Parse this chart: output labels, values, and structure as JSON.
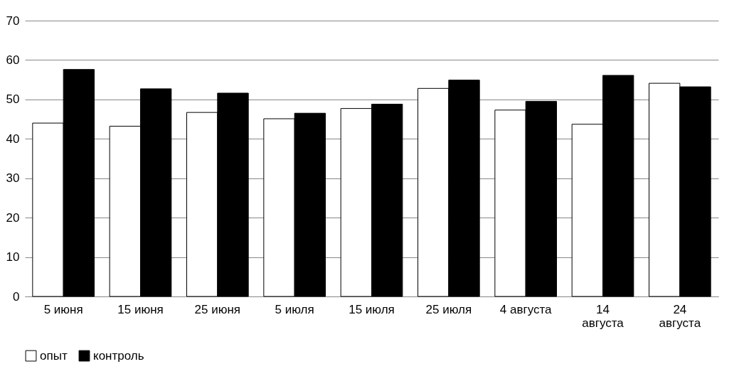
{
  "chart_data": {
    "type": "bar",
    "categories": [
      "5 июня",
      "15 июня",
      "25 июня",
      "5 июля",
      "15 июля",
      "25 июля",
      "4 августа",
      "14 августа",
      "24 августа"
    ],
    "series": [
      {
        "name": "опыт",
        "color": "#ffffff",
        "values": [
          44.0,
          43.2,
          46.7,
          45.1,
          47.7,
          52.8,
          47.3,
          43.7,
          54.1
        ]
      },
      {
        "name": "контроль",
        "color": "#000000",
        "values": [
          57.6,
          52.7,
          51.6,
          46.5,
          48.8,
          54.9,
          49.5,
          56.1,
          53.2
        ]
      }
    ],
    "ylim": [
      0,
      70
    ],
    "yticks": [
      0,
      10,
      20,
      30,
      40,
      50,
      60,
      70
    ],
    "grid": "y",
    "legend": "bottom"
  }
}
